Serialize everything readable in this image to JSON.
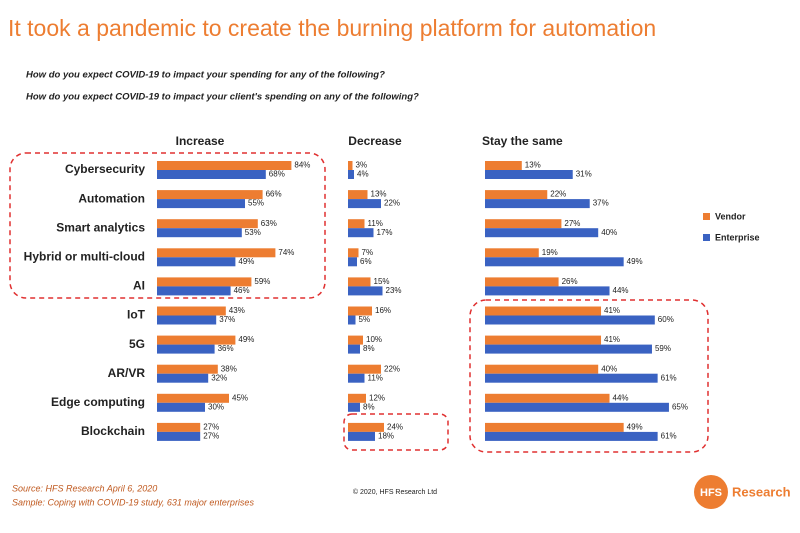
{
  "title": "It took a pandemic to create the burning platform for automation",
  "questions": [
    "How do you expect COVID-19 to impact your spending for any of the following?",
    "How do you expect COVID-19 to impact your client's spending on any of the following?"
  ],
  "chart_data": [
    {
      "type": "hbar",
      "title": "Increase",
      "categories": [
        "Cybersecurity",
        "Automation",
        "Smart analytics",
        "Hybrid or multi-cloud",
        "AI",
        "IoT",
        "5G",
        "AR/VR",
        "Edge computing",
        "Blockchain"
      ],
      "series": [
        {
          "color": "#ED7D31",
          "values": [
            84,
            66,
            63,
            74,
            59,
            43,
            49,
            38,
            45,
            27
          ],
          "value_labels": [
            "84%",
            "66%",
            "63%",
            "74%",
            "59%",
            "43%",
            "49%",
            "38%",
            "45%",
            "27%"
          ]
        },
        {
          "color": "#3A62C2",
          "values": [
            68,
            55,
            53,
            49,
            46,
            37,
            36,
            32,
            30,
            27
          ],
          "value_labels": [
            "68%",
            "55%",
            "53%",
            "49%",
            "46%",
            "37%",
            "36%",
            "32%",
            "30%",
            "27%"
          ]
        }
      ]
    },
    {
      "type": "hbar",
      "title": "Decrease",
      "series": [
        {
          "color": "#ED7D31",
          "values": [
            3,
            13,
            11,
            7,
            15,
            16,
            10,
            22,
            12,
            24
          ],
          "value_labels": [
            "3%",
            "13%",
            "11%",
            "7%",
            "15%",
            "16%",
            "10%",
            "22%",
            "12%",
            "24%"
          ]
        },
        {
          "color": "#3A62C2",
          "values": [
            4,
            22,
            17,
            6,
            23,
            5,
            8,
            11,
            8,
            18
          ],
          "value_labels": [
            "4%",
            "22%",
            "17%",
            "6%",
            "23%",
            "5%",
            "8%",
            "11%",
            "8%",
            "18%"
          ]
        }
      ]
    },
    {
      "type": "hbar",
      "title": "Stay the same",
      "series": [
        {
          "name": "Vendor",
          "color": "#ED7D31",
          "values": [
            13,
            22,
            27,
            19,
            26,
            41,
            41,
            40,
            44,
            49
          ],
          "value_labels": [
            "13%",
            "22%",
            "27%",
            "19%",
            "26%",
            "41%",
            "41%",
            "40%",
            "44%",
            "49%"
          ]
        },
        {
          "name": "Enterprise",
          "color": "#3A62C2",
          "values": [
            31,
            37,
            40,
            49,
            44,
            60,
            59,
            61,
            65,
            61
          ],
          "value_labels": [
            "31%",
            "37%",
            "40%",
            "49%",
            "44%",
            "60%",
            "59%",
            "61%",
            "65%",
            "61%"
          ]
        }
      ]
    }
  ],
  "footer": {
    "source": "Source: HFS Research April 6, 2020",
    "sample": "Sample: Coping with COVID-19 study, 631 major enterprises",
    "copyright": "© 2020, HFS Research Ltd",
    "logo": "HFS",
    "brand": "Research"
  }
}
